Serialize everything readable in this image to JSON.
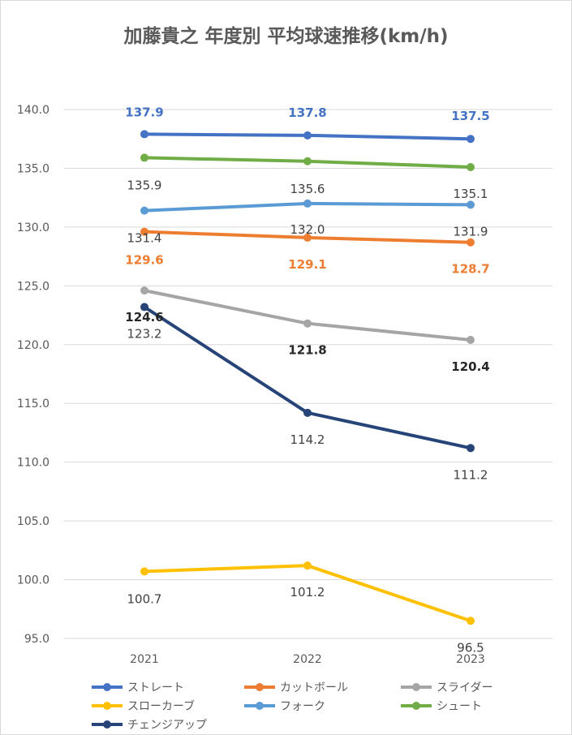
{
  "chart_data": {
    "type": "line",
    "title": "加藤貴之 年度別 平均球速推移(km/h)",
    "categories": [
      "2021",
      "2022",
      "2023"
    ],
    "ylim": [
      95.0,
      140.0
    ],
    "ytick_step": 5,
    "ytick_labels": [
      "95.0",
      "100.0",
      "105.0",
      "110.0",
      "115.0",
      "120.0",
      "125.0",
      "130.0",
      "135.0",
      "140.0"
    ],
    "grid": true,
    "legend_position": "bottom",
    "series": [
      {
        "name": "ストレート",
        "color": "#4472C4",
        "values": [
          137.9,
          137.8,
          137.5
        ],
        "labels": [
          "137.9",
          "137.8",
          "137.5"
        ],
        "label_color": "#4472C4",
        "label_bold": true
      },
      {
        "name": "カットボール",
        "color": "#ED7D31",
        "values": [
          129.6,
          129.1,
          128.7
        ],
        "labels": [
          "129.6",
          "129.1",
          "128.7"
        ],
        "label_color": "#ED7D31",
        "label_bold": true
      },
      {
        "name": "スライダー",
        "color": "#A5A5A5",
        "values": [
          124.6,
          121.8,
          120.4
        ],
        "labels": [
          "124.6",
          "121.8",
          "120.4"
        ],
        "label_color": "#262626",
        "label_bold": true
      },
      {
        "name": "スローカーブ",
        "color": "#FFC000",
        "values": [
          100.7,
          101.2,
          96.5
        ],
        "labels": [
          "100.7",
          "101.2",
          "96.5"
        ],
        "label_color": "#404040",
        "label_bold": false
      },
      {
        "name": "フォーク",
        "color": "#5B9BD5",
        "values": [
          131.4,
          132.0,
          131.9
        ],
        "labels": [
          "131.4",
          "132.0",
          "131.9"
        ],
        "label_color": "#404040",
        "label_bold": false
      },
      {
        "name": "シュート",
        "color": "#70AD47",
        "values": [
          135.9,
          135.6,
          135.1
        ],
        "labels": [
          "135.9",
          "135.6",
          "135.1"
        ],
        "label_color": "#404040",
        "label_bold": false
      },
      {
        "name": "チェンジアップ",
        "color": "#264478",
        "values": [
          123.2,
          114.2,
          111.2
        ],
        "labels": [
          "123.2",
          "114.2",
          "111.2"
        ],
        "label_color": "#404040",
        "label_bold": false
      }
    ]
  }
}
